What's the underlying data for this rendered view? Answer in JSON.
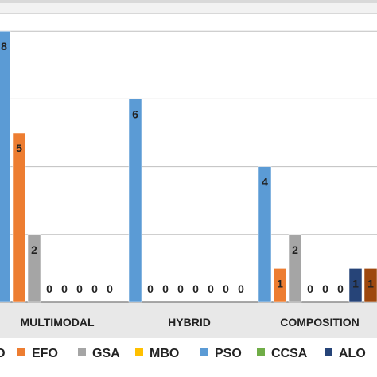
{
  "chart_data": {
    "type": "bar",
    "title": "",
    "xlabel": "",
    "ylabel": "",
    "ylim": [
      0,
      10
    ],
    "grid": true,
    "legend_position": "bottom",
    "categories": [
      "MULTIMODAL",
      "HYBRID",
      "COMPOSITION"
    ],
    "series": [
      {
        "name": "EFO",
        "color": "#ED7D31",
        "values": [
          5,
          0,
          1
        ]
      },
      {
        "name": "GSA",
        "color": "#A5A5A5",
        "values": [
          2,
          0,
          2
        ]
      },
      {
        "name": "MBO",
        "color": "#FFC000",
        "values": [
          0,
          0,
          0
        ]
      },
      {
        "name": "PSO",
        "color": "#5B9BD5",
        "values": [
          8,
          6,
          4
        ]
      },
      {
        "name": "CCSA",
        "color": "#70AD47",
        "values": [
          0,
          0,
          0
        ]
      },
      {
        "name": "ALO",
        "color": "#264478",
        "values": [
          0,
          0,
          1
        ]
      }
    ],
    "partial_series_label": "D",
    "partial_series_values": [
      0,
      0,
      1
    ],
    "partial_series_color": "#9E480E",
    "hybrid_label_order": [
      6,
      0,
      0,
      0,
      0,
      0,
      0,
      0
    ],
    "multimodal_label_order": [
      8,
      5,
      2,
      0,
      0,
      0,
      0,
      0
    ],
    "composition_label_order": [
      4,
      1,
      2,
      0,
      0,
      0,
      1,
      1
    ]
  }
}
